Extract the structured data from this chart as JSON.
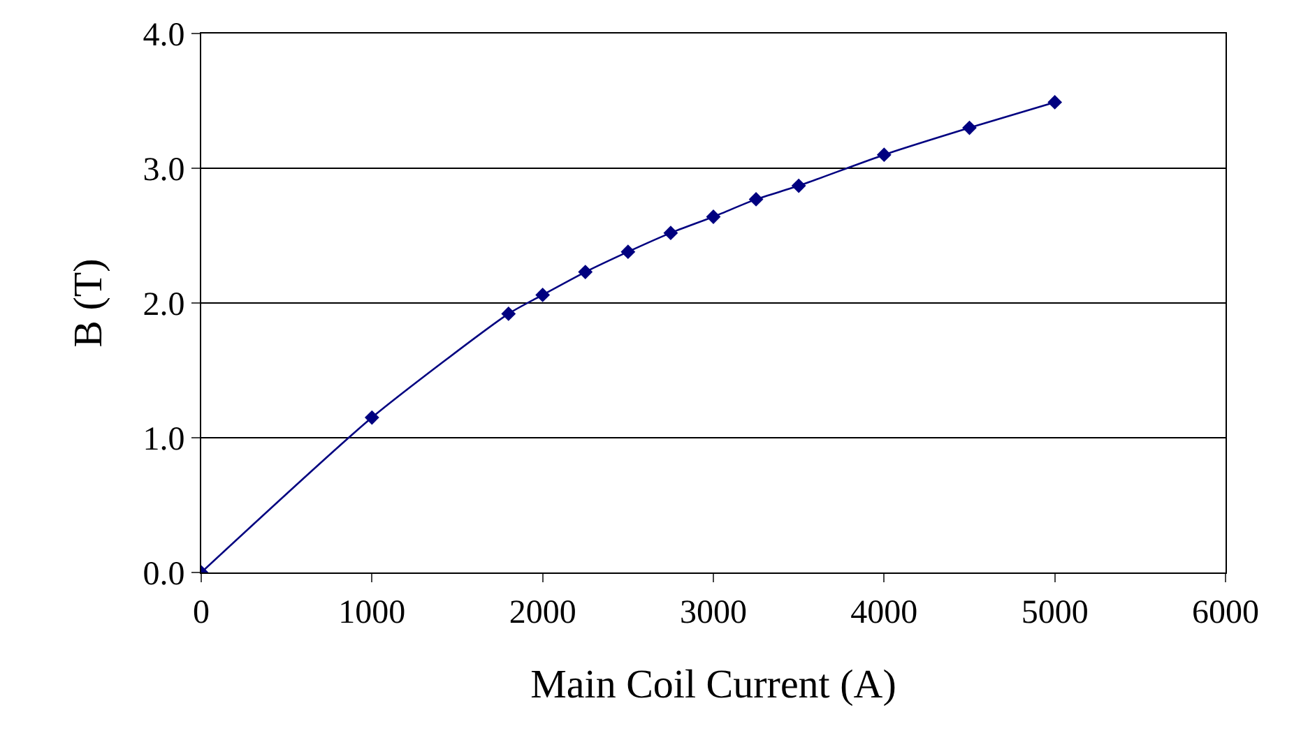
{
  "chart_data": {
    "type": "line",
    "xlabel": "Main Coil Current (A)",
    "ylabel": "B (T)",
    "x": [
      0,
      1000,
      1800,
      2000,
      2250,
      2500,
      2750,
      3000,
      3250,
      3500,
      4000,
      4500,
      5000
    ],
    "series": [
      {
        "color": "#000080",
        "values": [
          0.0,
          1.15,
          1.92,
          2.06,
          2.23,
          2.38,
          2.52,
          2.64,
          2.77,
          2.87,
          3.1,
          3.3,
          3.49
        ]
      }
    ],
    "xlim": [
      0,
      6000
    ],
    "xticks": [
      0,
      1000,
      2000,
      3000,
      4000,
      5000,
      6000
    ],
    "ylim": [
      0,
      4
    ],
    "yticks": [
      {
        "value": 0,
        "label": "0.0"
      },
      {
        "value": 1,
        "label": "1.0"
      },
      {
        "value": 2,
        "label": "2.0"
      },
      {
        "value": 3,
        "label": "3.0"
      },
      {
        "value": 4,
        "label": "4.0"
      }
    ],
    "grid": "y",
    "marker": "diamond",
    "line_style": "solid"
  }
}
